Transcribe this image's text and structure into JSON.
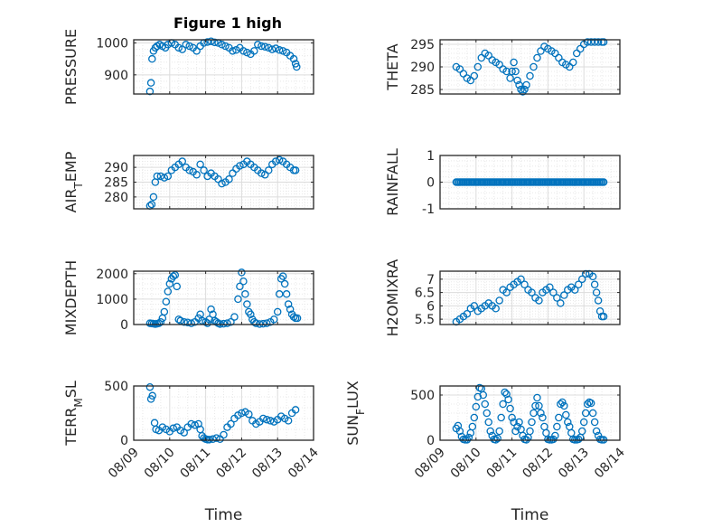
{
  "chart_data": [
    {
      "type": "scatter",
      "title": "Figure 1 high",
      "ylabel": "PRESSURE",
      "xlabel": "",
      "ylim": [
        840,
        1010
      ],
      "yticks": [
        900,
        1000
      ],
      "ytick_labels": [
        "900",
        "1000"
      ],
      "xlim": [
        9.0,
        14.0
      ],
      "xticks": [
        9,
        10,
        11,
        12,
        13,
        14
      ],
      "xtick_labels": [
        "08/09",
        "08/10",
        "08/11",
        "08/12",
        "08/13",
        "08/14"
      ],
      "grid": "on",
      "marker": "circle",
      "color": "#0072bd",
      "x": [
        9.45,
        9.48,
        9.51,
        9.55,
        9.6,
        9.65,
        9.72,
        9.8,
        9.88,
        9.95,
        10.05,
        10.15,
        10.25,
        10.35,
        10.45,
        10.55,
        10.65,
        10.75,
        10.85,
        10.95,
        11.05,
        11.15,
        11.25,
        11.35,
        11.45,
        11.55,
        11.65,
        11.75,
        11.85,
        11.95,
        12.05,
        12.15,
        12.25,
        12.35,
        12.45,
        12.55,
        12.65,
        12.75,
        12.85,
        12.95,
        13.05,
        13.15,
        13.25,
        13.35,
        13.45,
        13.5,
        13.53
      ],
      "y": [
        848,
        875,
        950,
        975,
        985,
        990,
        995,
        990,
        985,
        995,
        1000,
        995,
        985,
        980,
        995,
        990,
        985,
        975,
        990,
        1000,
        1003,
        1005,
        1002,
        1000,
        995,
        990,
        985,
        975,
        978,
        985,
        975,
        970,
        965,
        975,
        995,
        990,
        988,
        985,
        980,
        983,
        978,
        975,
        970,
        960,
        950,
        935,
        925
      ]
    },
    {
      "type": "scatter",
      "title": "",
      "ylabel": "THETA",
      "xlabel": "",
      "ylim": [
        284,
        296
      ],
      "yticks": [
        285,
        290,
        295
      ],
      "ytick_labels": [
        "285",
        "290",
        "295"
      ],
      "xlim": [
        9.0,
        14.0
      ],
      "xticks": [
        9,
        10,
        11,
        12,
        13,
        14
      ],
      "xtick_labels": [
        "08/09",
        "08/10",
        "08/11",
        "08/12",
        "08/13",
        "08/14"
      ],
      "grid": "on",
      "marker": "circle",
      "color": "#0072bd",
      "x": [
        9.45,
        9.55,
        9.65,
        9.75,
        9.85,
        9.95,
        10.05,
        10.15,
        10.25,
        10.35,
        10.45,
        10.55,
        10.65,
        10.75,
        10.85,
        10.95,
        11.0,
        11.05,
        11.1,
        11.15,
        11.2,
        11.25,
        11.3,
        11.35,
        11.4,
        11.5,
        11.6,
        11.7,
        11.8,
        11.9,
        12.0,
        12.1,
        12.2,
        12.3,
        12.4,
        12.5,
        12.6,
        12.7,
        12.8,
        12.9,
        13.0,
        13.1,
        13.2,
        13.3,
        13.4,
        13.5,
        13.55
      ],
      "y": [
        290,
        289.5,
        288.5,
        287.5,
        287,
        288,
        290,
        292,
        293,
        292.5,
        291.5,
        291,
        290.5,
        289.5,
        289,
        287.5,
        289,
        291,
        289,
        287,
        286,
        285,
        284.5,
        285,
        286,
        288,
        290,
        292,
        293.5,
        294.5,
        294,
        293.5,
        293,
        292,
        291,
        290.5,
        290,
        291,
        293,
        294,
        295,
        295.5,
        295.5,
        295.5,
        295.5,
        295.5,
        295.5
      ]
    },
    {
      "type": "scatter",
      "title": "",
      "ylabel": "AIR_TEMP",
      "xlabel": "",
      "ylim": [
        276,
        294
      ],
      "yticks": [
        280,
        285,
        290
      ],
      "ytick_labels": [
        "280",
        "285",
        "290"
      ],
      "xlim": [
        9.0,
        14.0
      ],
      "xticks": [
        9,
        10,
        11,
        12,
        13,
        14
      ],
      "xtick_labels": [
        "08/09",
        "08/10",
        "08/11",
        "08/12",
        "08/13",
        "08/14"
      ],
      "grid": "on",
      "marker": "circle",
      "color": "#0072bd",
      "x": [
        9.45,
        9.5,
        9.55,
        9.6,
        9.65,
        9.75,
        9.85,
        9.95,
        10.05,
        10.15,
        10.25,
        10.35,
        10.45,
        10.55,
        10.65,
        10.75,
        10.85,
        10.95,
        11.05,
        11.15,
        11.25,
        11.35,
        11.45,
        11.55,
        11.65,
        11.75,
        11.85,
        11.95,
        12.05,
        12.15,
        12.25,
        12.35,
        12.45,
        12.55,
        12.65,
        12.75,
        12.85,
        12.95,
        13.05,
        13.15,
        13.25,
        13.35,
        13.45,
        13.5
      ],
      "y": [
        277,
        277.5,
        280,
        285,
        287,
        287,
        286.5,
        287,
        289,
        290,
        291,
        292,
        290,
        289,
        288.5,
        287.5,
        291,
        289,
        287,
        288,
        287,
        286,
        284.5,
        285,
        286,
        288,
        289.5,
        290.5,
        291,
        292,
        291,
        290,
        289,
        288,
        287.5,
        289,
        291,
        292,
        292.5,
        292,
        291,
        290,
        289,
        289
      ]
    },
    {
      "type": "scatter",
      "title": "",
      "ylabel": "RAINFALL",
      "xlabel": "",
      "ylim": [
        -1,
        1
      ],
      "yticks": [
        -1,
        0,
        1
      ],
      "ytick_labels": [
        "-1",
        "0",
        "1"
      ],
      "xlim": [
        9.0,
        14.0
      ],
      "xticks": [
        9,
        10,
        11,
        12,
        13,
        14
      ],
      "xtick_labels": [
        "08/09",
        "08/10",
        "08/11",
        "08/12",
        "08/13",
        "08/14"
      ],
      "grid": "on",
      "marker": "circle",
      "color": "#0072bd",
      "x_start": 9.45,
      "x_end": 13.55,
      "n_points": 100,
      "y_constant": 0
    },
    {
      "type": "scatter",
      "title": "",
      "ylabel": "MIXDEPTH",
      "xlabel": "",
      "ylim": [
        0,
        2100
      ],
      "yticks": [
        0,
        1000,
        2000
      ],
      "ytick_labels": [
        "0",
        "1000",
        "2000"
      ],
      "xlim": [
        9.0,
        14.0
      ],
      "xticks": [
        9,
        10,
        11,
        12,
        13,
        14
      ],
      "xtick_labels": [
        "08/09",
        "08/10",
        "08/11",
        "08/12",
        "08/13",
        "08/14"
      ],
      "grid": "on",
      "marker": "circle",
      "color": "#0072bd",
      "x": [
        9.45,
        9.5,
        9.55,
        9.6,
        9.65,
        9.7,
        9.75,
        9.8,
        9.85,
        9.9,
        9.95,
        10.0,
        10.05,
        10.1,
        10.15,
        10.2,
        10.25,
        10.3,
        10.4,
        10.5,
        10.6,
        10.7,
        10.8,
        10.85,
        10.9,
        11.0,
        11.05,
        11.1,
        11.15,
        11.2,
        11.25,
        11.3,
        11.35,
        11.4,
        11.5,
        11.6,
        11.7,
        11.8,
        11.9,
        11.95,
        12.0,
        12.05,
        12.1,
        12.15,
        12.2,
        12.25,
        12.3,
        12.35,
        12.4,
        12.5,
        12.6,
        12.7,
        12.8,
        12.9,
        13.0,
        13.05,
        13.1,
        13.15,
        13.2,
        13.25,
        13.3,
        13.35,
        13.4,
        13.45,
        13.5,
        13.55
      ],
      "y": [
        50,
        40,
        30,
        20,
        30,
        50,
        100,
        250,
        500,
        900,
        1300,
        1600,
        1800,
        1900,
        1950,
        1500,
        200,
        150,
        100,
        80,
        50,
        100,
        250,
        400,
        150,
        100,
        50,
        200,
        600,
        400,
        150,
        100,
        50,
        20,
        30,
        50,
        100,
        300,
        1000,
        1500,
        2050,
        1700,
        1200,
        800,
        500,
        400,
        200,
        100,
        50,
        20,
        30,
        50,
        100,
        200,
        500,
        1200,
        1800,
        1900,
        1600,
        1200,
        800,
        600,
        400,
        300,
        250,
        250
      ]
    },
    {
      "type": "scatter",
      "title": "",
      "ylabel": "H2OMIXRA",
      "xlabel": "",
      "ylim": [
        5.3,
        7.3
      ],
      "yticks": [
        5.5,
        6,
        6.5,
        7
      ],
      "ytick_labels": [
        "5.5",
        "6",
        "6.5",
        "7"
      ],
      "xlim": [
        9.0,
        14.0
      ],
      "xticks": [
        9,
        10,
        11,
        12,
        13,
        14
      ],
      "xtick_labels": [
        "08/09",
        "08/10",
        "08/11",
        "08/12",
        "08/13",
        "08/14"
      ],
      "grid": "on",
      "marker": "circle",
      "color": "#0072bd",
      "x": [
        9.45,
        9.55,
        9.65,
        9.75,
        9.85,
        9.95,
        10.05,
        10.15,
        10.25,
        10.35,
        10.45,
        10.55,
        10.65,
        10.75,
        10.85,
        10.95,
        11.05,
        11.15,
        11.25,
        11.35,
        11.45,
        11.55,
        11.65,
        11.75,
        11.85,
        11.95,
        12.05,
        12.15,
        12.25,
        12.35,
        12.45,
        12.55,
        12.65,
        12.75,
        12.85,
        12.95,
        13.05,
        13.15,
        13.25,
        13.3,
        13.35,
        13.4,
        13.45,
        13.5,
        13.55
      ],
      "y": [
        5.4,
        5.5,
        5.6,
        5.7,
        5.9,
        6.0,
        5.8,
        5.9,
        6.0,
        6.1,
        6.0,
        5.9,
        6.2,
        6.6,
        6.5,
        6.7,
        6.8,
        6.9,
        7.0,
        6.8,
        6.6,
        6.5,
        6.3,
        6.2,
        6.5,
        6.6,
        6.7,
        6.5,
        6.3,
        6.1,
        6.4,
        6.6,
        6.7,
        6.6,
        6.8,
        7.0,
        7.2,
        7.2,
        7.1,
        6.8,
        6.5,
        6.2,
        5.8,
        5.6,
        5.6
      ]
    },
    {
      "type": "scatter",
      "title": "",
      "ylabel": "TERR_MSL",
      "xlabel": "Time",
      "ylim": [
        0,
        500
      ],
      "yticks": [
        0,
        500
      ],
      "ytick_labels": [
        "0",
        "500"
      ],
      "xlim": [
        9.0,
        14.0
      ],
      "xticks": [
        9,
        10,
        11,
        12,
        13,
        14
      ],
      "xtick_labels": [
        "08/09",
        "08/10",
        "08/11",
        "08/12",
        "08/13",
        "08/14"
      ],
      "grid": "on",
      "marker": "circle",
      "color": "#0072bd",
      "x": [
        9.45,
        9.48,
        9.52,
        9.58,
        9.62,
        9.7,
        9.8,
        9.9,
        10.0,
        10.1,
        10.2,
        10.3,
        10.4,
        10.5,
        10.6,
        10.7,
        10.8,
        10.85,
        10.9,
        10.95,
        11.0,
        11.05,
        11.1,
        11.2,
        11.3,
        11.4,
        11.5,
        11.6,
        11.7,
        11.8,
        11.9,
        12.0,
        12.1,
        12.2,
        12.3,
        12.4,
        12.5,
        12.6,
        12.7,
        12.8,
        12.9,
        13.0,
        13.1,
        13.2,
        13.3,
        13.4,
        13.5
      ],
      "y": [
        490,
        380,
        410,
        160,
        100,
        90,
        120,
        100,
        80,
        110,
        120,
        90,
        70,
        120,
        150,
        140,
        150,
        100,
        40,
        20,
        10,
        5,
        5,
        10,
        20,
        10,
        50,
        120,
        150,
        200,
        230,
        250,
        260,
        240,
        180,
        150,
        170,
        200,
        190,
        180,
        170,
        190,
        220,
        200,
        180,
        250,
        280
      ]
    },
    {
      "type": "scatter",
      "title": "",
      "ylabel": "SUN_FLUX",
      "xlabel": "Time",
      "ylim": [
        0,
        600
      ],
      "yticks": [
        0,
        500
      ],
      "ytick_labels": [
        "0",
        "500"
      ],
      "xlim": [
        9.0,
        14.0
      ],
      "xticks": [
        9,
        10,
        11,
        12,
        13,
        14
      ],
      "xtick_labels": [
        "08/09",
        "08/10",
        "08/11",
        "08/12",
        "08/13",
        "08/14"
      ],
      "grid": "on",
      "marker": "circle",
      "color": "#0072bd",
      "x": [
        9.45,
        9.5,
        9.55,
        9.6,
        9.65,
        9.7,
        9.75,
        9.8,
        9.85,
        9.9,
        9.95,
        10.0,
        10.05,
        10.1,
        10.15,
        10.2,
        10.25,
        10.3,
        10.35,
        10.4,
        10.45,
        10.5,
        10.55,
        10.6,
        10.65,
        10.7,
        10.75,
        10.8,
        10.85,
        10.9,
        10.95,
        11.0,
        11.05,
        11.1,
        11.15,
        11.2,
        11.25,
        11.3,
        11.35,
        11.4,
        11.45,
        11.5,
        11.55,
        11.6,
        11.65,
        11.7,
        11.75,
        11.8,
        11.85,
        11.9,
        11.95,
        12.0,
        12.05,
        12.1,
        12.15,
        12.2,
        12.25,
        12.3,
        12.35,
        12.4,
        12.45,
        12.5,
        12.55,
        12.6,
        12.65,
        12.7,
        12.75,
        12.8,
        12.85,
        12.9,
        12.95,
        13.0,
        13.05,
        13.1,
        13.15,
        13.2,
        13.25,
        13.3,
        13.35,
        13.4,
        13.45,
        13.5,
        13.55
      ],
      "y": [
        130,
        160,
        100,
        40,
        10,
        5,
        5,
        30,
        80,
        150,
        250,
        370,
        480,
        580,
        570,
        500,
        400,
        300,
        200,
        100,
        50,
        10,
        5,
        20,
        100,
        250,
        400,
        530,
        510,
        450,
        350,
        250,
        200,
        100,
        150,
        200,
        120,
        50,
        10,
        5,
        30,
        100,
        200,
        300,
        380,
        470,
        380,
        300,
        250,
        150,
        80,
        10,
        5,
        5,
        10,
        50,
        150,
        250,
        400,
        420,
        380,
        280,
        200,
        150,
        80,
        10,
        5,
        5,
        10,
        30,
        100,
        200,
        300,
        400,
        420,
        410,
        300,
        200,
        100,
        50,
        10,
        5,
        5
      ]
    }
  ]
}
